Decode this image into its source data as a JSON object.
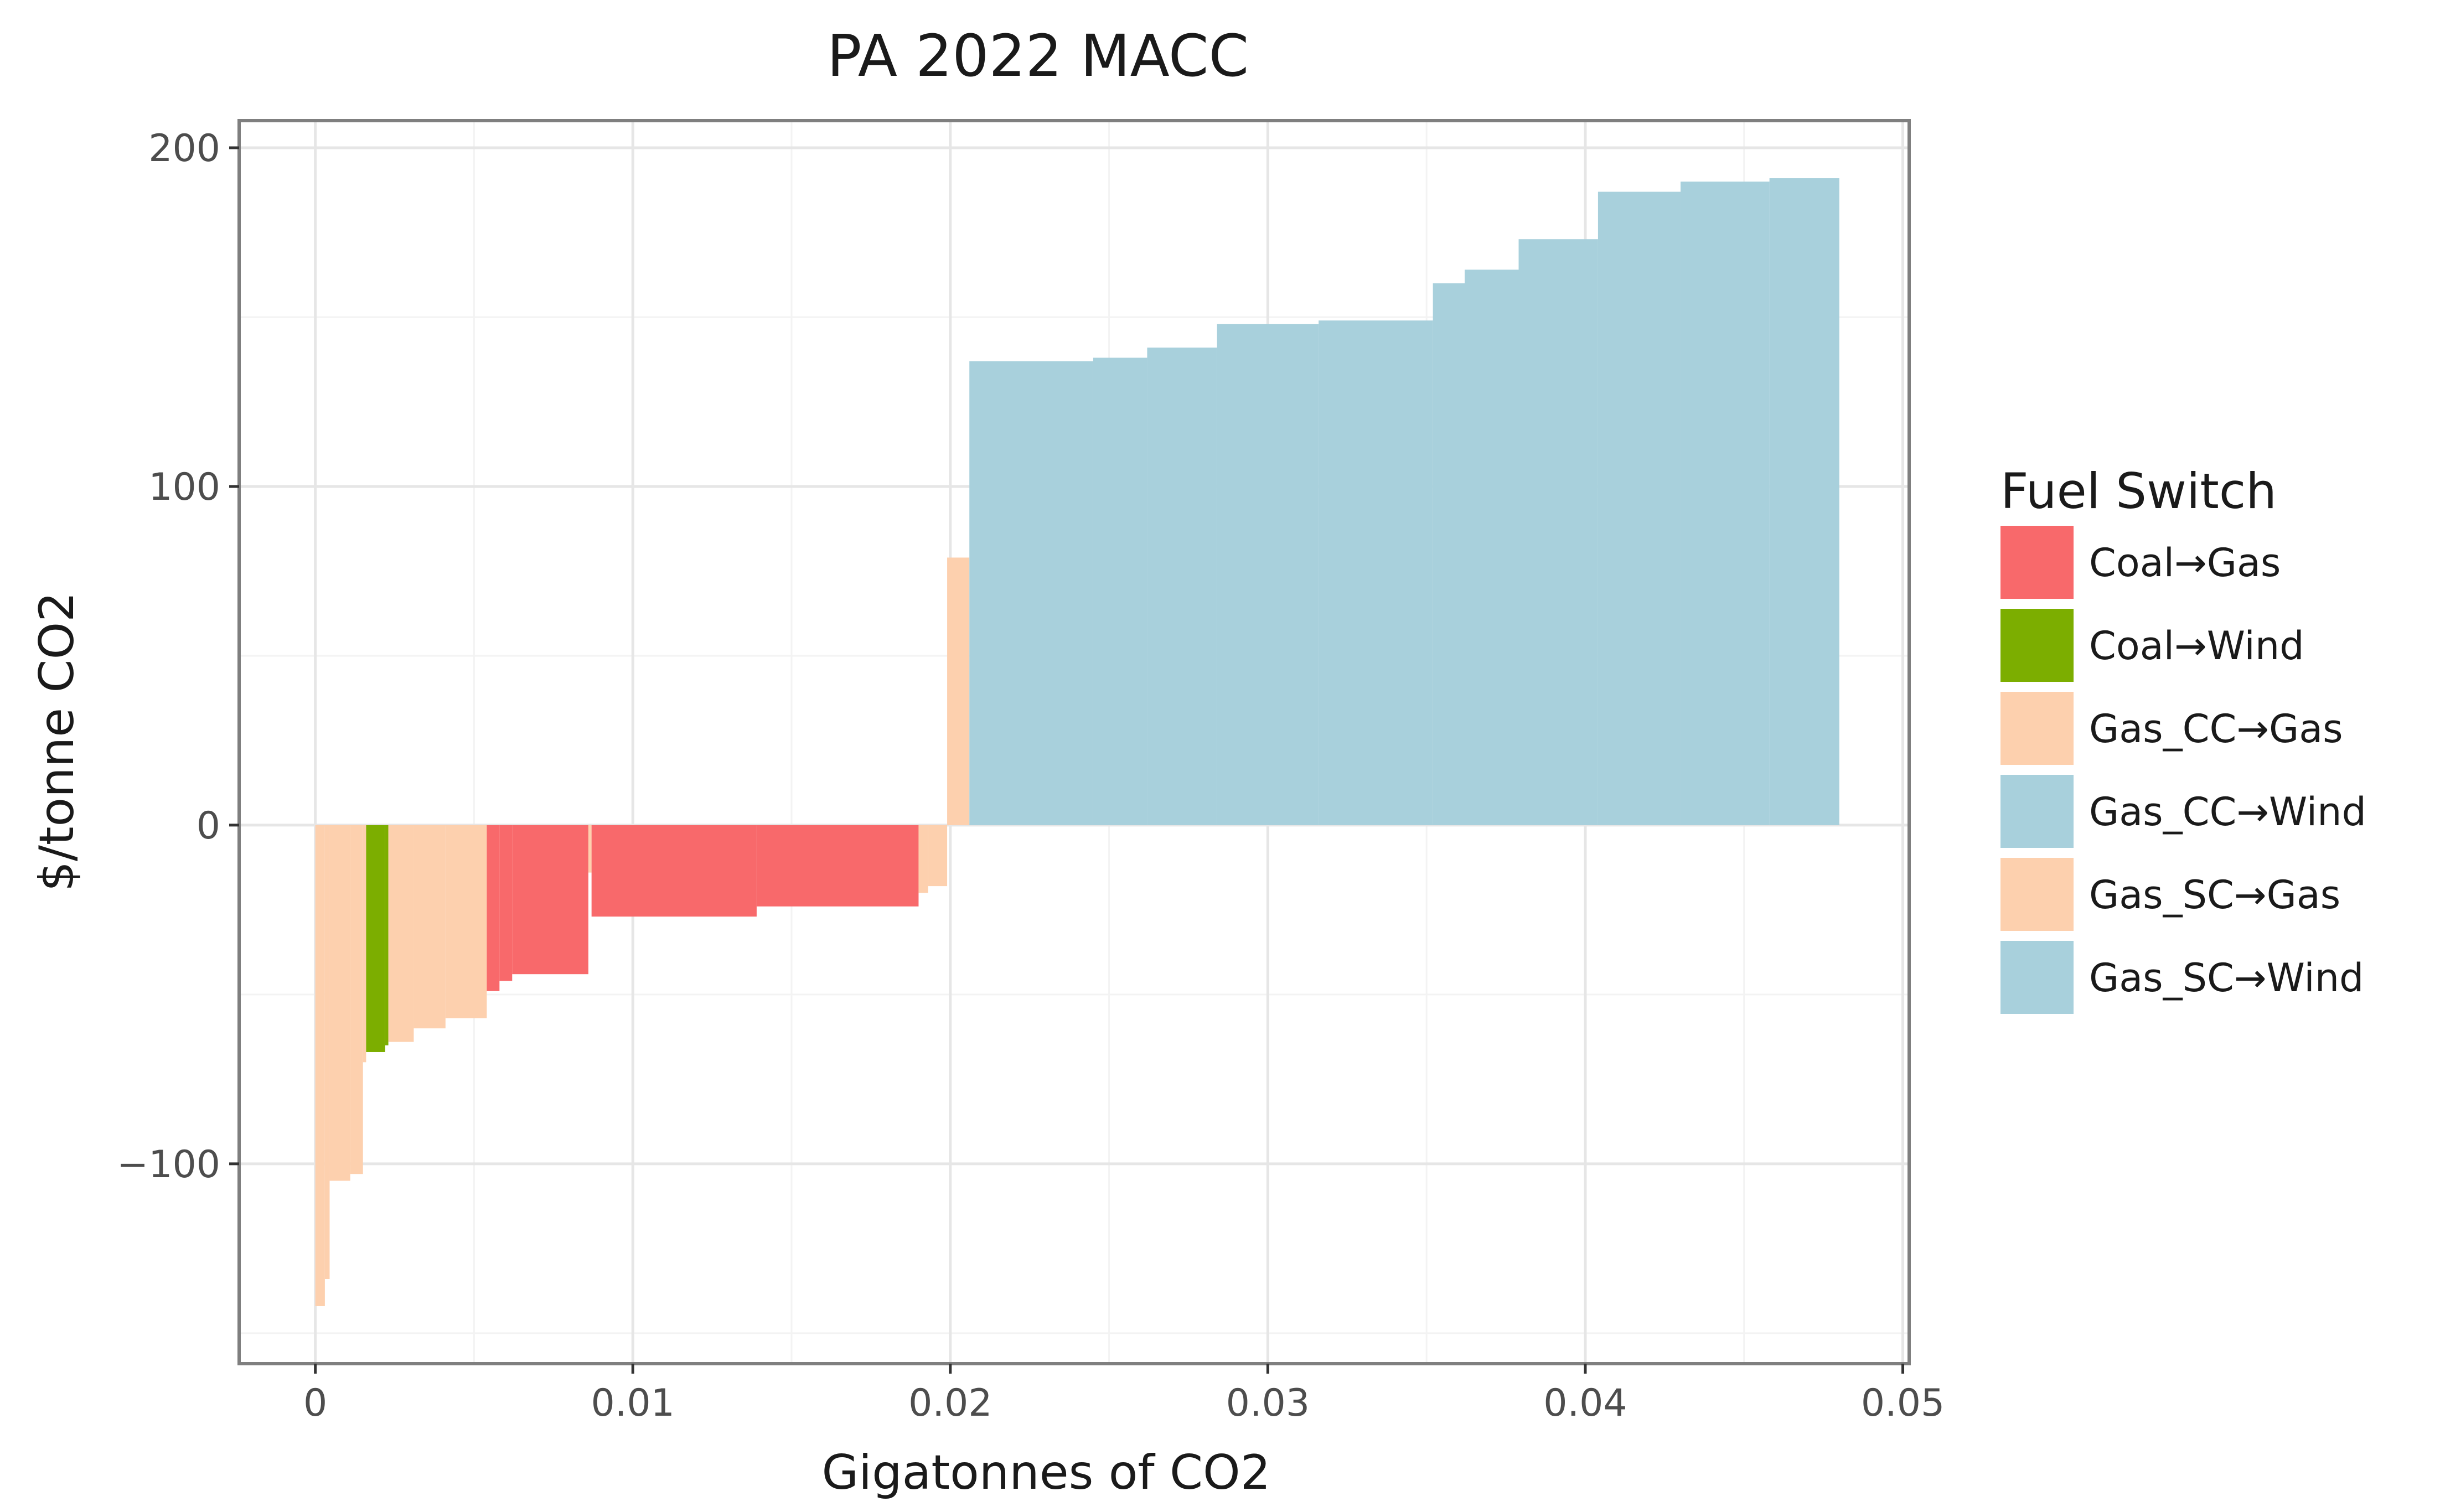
{
  "chart_data": {
    "type": "bar",
    "title": "PA 2022 MACC",
    "xlabel": "Gigatonnes of CO2",
    "ylabel": "$/tonne CO2",
    "xlim": [
      -0.0024,
      0.0502
    ],
    "ylim": [
      -159,
      208
    ],
    "x_ticks": [
      0,
      0.01,
      0.02,
      0.03,
      0.04,
      0.05
    ],
    "x_tick_labels": [
      "0",
      "0.01",
      "0.02",
      "0.03",
      "0.04",
      "0.05"
    ],
    "y_ticks": [
      -100,
      0,
      100,
      200
    ],
    "y_tick_labels": [
      "−100",
      "0",
      "100",
      "200"
    ],
    "grid": true,
    "legend": {
      "title": "Fuel Switch",
      "position": "right",
      "entries": [
        {
          "label": "Coal→Gas",
          "color": "#f8696b"
        },
        {
          "label": "Coal→Wind",
          "color": "#7cae00"
        },
        {
          "label": "Gas_CC→Gas",
          "color": "#fdd0ae"
        },
        {
          "label": "Gas_CC→Wind",
          "color": "#a8d0dc"
        },
        {
          "label": "Gas_SC→Gas",
          "color": "#fdd0ae"
        },
        {
          "label": "Gas_SC→Wind",
          "color": "#a8d0dc"
        }
      ]
    },
    "bars": [
      {
        "x0": 0.0,
        "x1": 0.0003,
        "y": -142,
        "group": "Gas_SC→Gas"
      },
      {
        "x0": 0.0003,
        "x1": 0.00045,
        "y": -134,
        "group": "Gas_SC→Gas"
      },
      {
        "x0": 0.00045,
        "x1": 0.0011,
        "y": -105,
        "group": "Gas_SC→Gas"
      },
      {
        "x0": 0.0011,
        "x1": 0.0015,
        "y": -103,
        "group": "Gas_SC→Gas"
      },
      {
        "x0": 0.0015,
        "x1": 0.0016,
        "y": -70,
        "group": "Gas_SC→Gas"
      },
      {
        "x0": 0.0016,
        "x1": 0.0022,
        "y": -67,
        "group": "Coal→Wind"
      },
      {
        "x0": 0.0022,
        "x1": 0.0023,
        "y": -65,
        "group": "Coal→Wind"
      },
      {
        "x0": 0.0023,
        "x1": 0.0031,
        "y": -64,
        "group": "Gas_SC→Gas"
      },
      {
        "x0": 0.0031,
        "x1": 0.0041,
        "y": -60,
        "group": "Gas_SC→Gas"
      },
      {
        "x0": 0.0041,
        "x1": 0.0054,
        "y": -57,
        "group": "Gas_SC→Gas"
      },
      {
        "x0": 0.0054,
        "x1": 0.0058,
        "y": -49,
        "group": "Coal→Gas"
      },
      {
        "x0": 0.0058,
        "x1": 0.0062,
        "y": -46,
        "group": "Coal→Gas"
      },
      {
        "x0": 0.0062,
        "x1": 0.0086,
        "y": -44,
        "group": "Coal→Gas"
      },
      {
        "x0": 0.0086,
        "x1": 0.0087,
        "y": -14,
        "group": "Gas_CC→Gas"
      },
      {
        "x0": 0.0087,
        "x1": 0.0139,
        "y": -27,
        "group": "Coal→Gas"
      },
      {
        "x0": 0.0139,
        "x1": 0.019,
        "y": -24,
        "group": "Coal→Gas"
      },
      {
        "x0": 0.019,
        "x1": 0.0193,
        "y": -20,
        "group": "Gas_CC→Gas"
      },
      {
        "x0": 0.0193,
        "x1": 0.0199,
        "y": -18,
        "group": "Gas_CC→Gas"
      },
      {
        "x0": 0.0199,
        "x1": 0.0206,
        "y": 79,
        "group": "Gas_CC→Gas"
      },
      {
        "x0": 0.0206,
        "x1": 0.0245,
        "y": 137,
        "group": "Gas_CC→Wind"
      },
      {
        "x0": 0.0245,
        "x1": 0.0262,
        "y": 138,
        "group": "Gas_CC→Wind"
      },
      {
        "x0": 0.0262,
        "x1": 0.0284,
        "y": 141,
        "group": "Gas_CC→Wind"
      },
      {
        "x0": 0.0284,
        "x1": 0.0316,
        "y": 148,
        "group": "Gas_CC→Wind"
      },
      {
        "x0": 0.0316,
        "x1": 0.0352,
        "y": 149,
        "group": "Gas_CC→Wind"
      },
      {
        "x0": 0.0352,
        "x1": 0.0362,
        "y": 160,
        "group": "Gas_CC→Wind"
      },
      {
        "x0": 0.0362,
        "x1": 0.0379,
        "y": 164,
        "group": "Gas_CC→Wind"
      },
      {
        "x0": 0.0379,
        "x1": 0.0404,
        "y": 173,
        "group": "Gas_CC→Wind"
      },
      {
        "x0": 0.0404,
        "x1": 0.043,
        "y": 187,
        "group": "Gas_CC→Wind"
      },
      {
        "x0": 0.043,
        "x1": 0.0458,
        "y": 190,
        "group": "Gas_CC→Wind"
      },
      {
        "x0": 0.0458,
        "x1": 0.048,
        "y": 191,
        "group": "Gas_CC→Wind"
      }
    ]
  }
}
